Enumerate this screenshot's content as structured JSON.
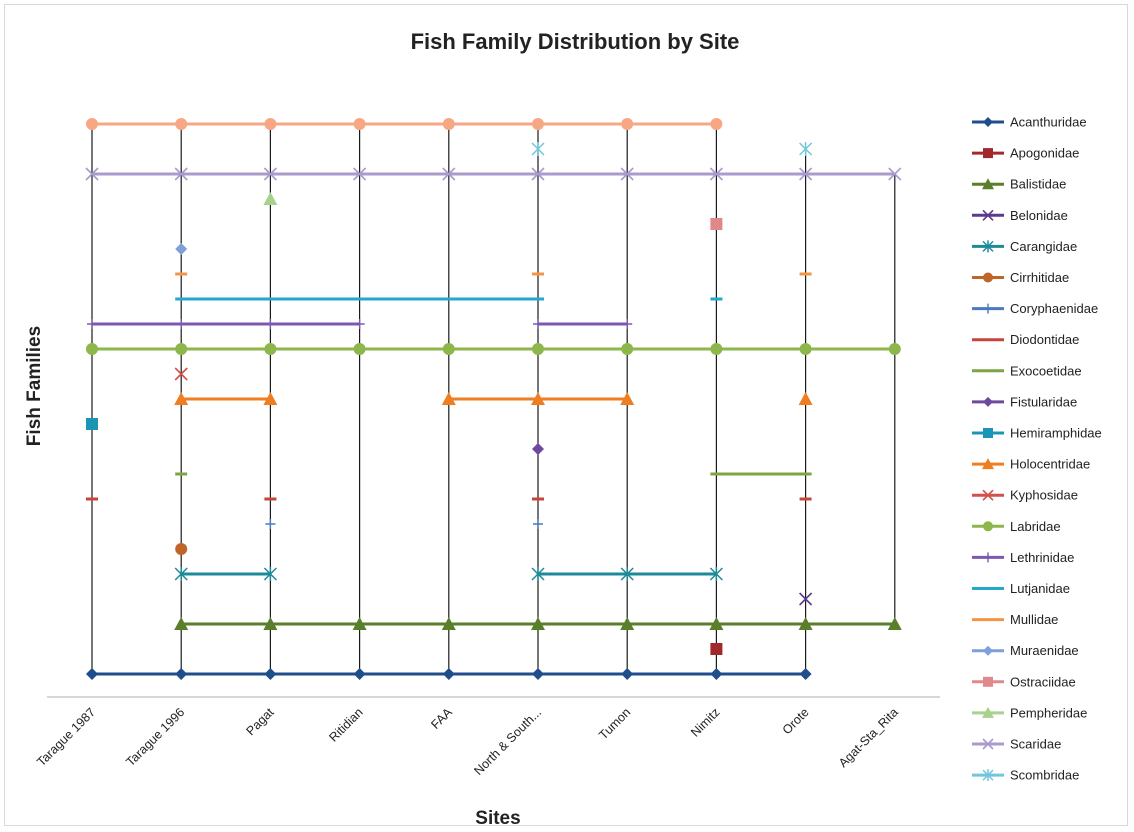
{
  "chart_data": {
    "type": "line",
    "title": "Fish Family Distribution by Site",
    "xlabel": "Sites",
    "ylabel": "Fish Families",
    "categories": [
      "Tarague 1987",
      "Tarague 1996",
      "Pagat",
      "Ritidian",
      "FAA",
      "North & South...",
      "Tumon",
      "Nimitz",
      "Orote",
      "Agat-Sta_Rita"
    ],
    "y_categories": [
      "Acanthuridae",
      "Apogonidae",
      "Balistidae",
      "Belonidae",
      "Carangidae",
      "Cirrhitidae",
      "Coryphaenidae",
      "Diodontidae",
      "Exocoetidae",
      "Fistularidae",
      "Hemiramphidae",
      "Holocentridae",
      "Kyphosidae",
      "Labridae",
      "Lethrinidae",
      "Lutjanidae",
      "Mullidae",
      "Muraenidae",
      "Ostraciidae",
      "Pempheridae",
      "Scaridae",
      "Scombridae"
    ],
    "legend_position": "right",
    "grid": false,
    "series": [
      {
        "name": "Acanthuridae",
        "color": "#1F4E8C",
        "marker": "diamond",
        "sites": [
          0,
          1,
          2,
          3,
          4,
          5,
          6,
          7,
          8
        ]
      },
      {
        "name": "Apogonidae",
        "color": "#A3282B",
        "marker": "square",
        "sites": [
          7
        ]
      },
      {
        "name": "Balistidae",
        "color": "#5A7F2A",
        "marker": "triangle",
        "sites": [
          1,
          2,
          3,
          4,
          5,
          6,
          7,
          8,
          9
        ]
      },
      {
        "name": "Belonidae",
        "color": "#5B3A8C",
        "marker": "x",
        "sites": [
          8
        ]
      },
      {
        "name": "Carangidae",
        "color": "#1E8A99",
        "marker": "star",
        "sites": [
          1,
          2,
          5,
          6,
          7
        ]
      },
      {
        "name": "Cirrhitidae",
        "color": "#C0652A",
        "marker": "circle",
        "sites": [
          1
        ]
      },
      {
        "name": "Coryphaenidae",
        "color": "#4A79C2",
        "marker": "plus",
        "sites": [
          2,
          5
        ]
      },
      {
        "name": "Diodontidae",
        "color": "#C8443A",
        "marker": "dash",
        "sites": [
          0,
          2,
          5,
          8
        ]
      },
      {
        "name": "Exocoetidae",
        "color": "#7FA442",
        "marker": "dash",
        "sites": [
          1,
          7,
          8
        ]
      },
      {
        "name": "Fistularidae",
        "color": "#6E4A9E",
        "marker": "diamond",
        "sites": [
          5
        ]
      },
      {
        "name": "Hemiramphidae",
        "color": "#1B95B5",
        "marker": "square",
        "sites": [
          0
        ]
      },
      {
        "name": "Holocentridae",
        "color": "#EF7D22",
        "marker": "triangle",
        "sites": [
          1,
          2,
          4,
          5,
          6,
          8
        ]
      },
      {
        "name": "Kyphosidae",
        "color": "#D2504B",
        "marker": "x",
        "sites": [
          1
        ]
      },
      {
        "name": "Labridae",
        "color": "#8DB64B",
        "marker": "circle",
        "sites": [
          0,
          1,
          2,
          3,
          4,
          5,
          6,
          7,
          8,
          9
        ]
      },
      {
        "name": "Lethrinidae",
        "color": "#7D58B0",
        "marker": "plus",
        "sites": [
          0,
          1,
          2,
          3,
          5,
          6
        ]
      },
      {
        "name": "Lutjanidae",
        "color": "#21A9CC",
        "marker": "dash",
        "sites": [
          1,
          2,
          3,
          4,
          5,
          7
        ]
      },
      {
        "name": "Mullidae",
        "color": "#F59446",
        "marker": "dash",
        "sites": [
          1,
          5,
          8
        ]
      },
      {
        "name": "Muraenidae",
        "color": "#7F9FD8",
        "marker": "diamond",
        "sites": [
          1
        ]
      },
      {
        "name": "Ostraciidae",
        "color": "#E0898A",
        "marker": "square",
        "sites": [
          7
        ]
      },
      {
        "name": "Pempheridae",
        "color": "#A9D18E",
        "marker": "triangle",
        "sites": [
          2
        ]
      },
      {
        "name": "Scaridae",
        "color": "#A99BCB",
        "marker": "x",
        "sites": [
          0,
          1,
          2,
          3,
          4,
          5,
          6,
          7,
          8,
          9
        ]
      },
      {
        "name": "Scombridae",
        "color": "#72C6DC",
        "marker": "star",
        "sites": [
          5,
          8
        ]
      },
      {
        "name": "",
        "color": "#F8A784",
        "marker": "circle",
        "sites": [
          0,
          1,
          2,
          3,
          4,
          5,
          6,
          7
        ]
      }
    ]
  }
}
